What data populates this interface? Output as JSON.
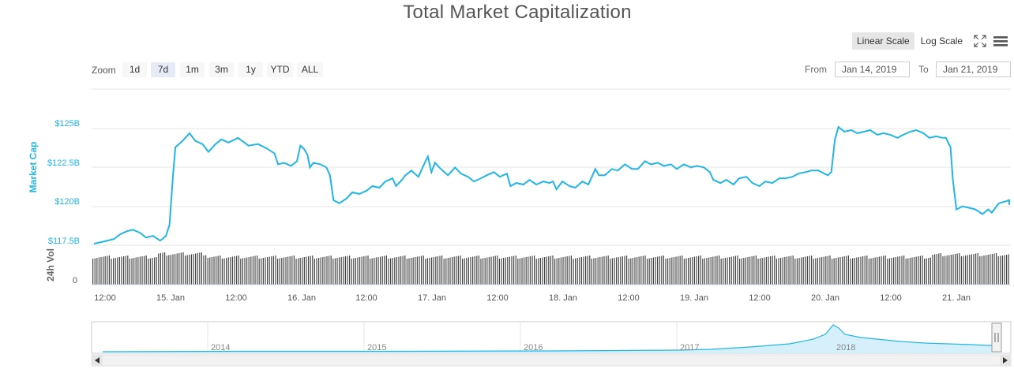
{
  "title": "Total Market Capitalization",
  "scale_buttons": {
    "linear": "Linear Scale",
    "log": "Log Scale"
  },
  "zoom": {
    "label": "Zoom",
    "buttons": [
      "1d",
      "7d",
      "1m",
      "3m",
      "1y",
      "YTD",
      "ALL"
    ],
    "active": "7d"
  },
  "range": {
    "from_label": "From",
    "from_value": "Jan 14, 2019",
    "to_label": "To",
    "to_value": "Jan 21, 2019"
  },
  "icons": [
    "fullscreen-icon",
    "menu-icon"
  ],
  "colors": {
    "line": "#22b5e6",
    "volume": "#444444",
    "grid": "#e6e6e6"
  },
  "chart_data": {
    "type": "line",
    "title": "Total Market Capitalization",
    "ylabel": "Market Cap",
    "volume_label": "24h Vol",
    "ylim": [
      117.5,
      125.5
    ],
    "y_ticks": [
      "$117.5B",
      "$120B",
      "$122.5B",
      "$125B"
    ],
    "volume_ticks": [
      "0"
    ],
    "x_ticks": [
      "12:00",
      "15. Jan",
      "12:00",
      "16. Jan",
      "12:00",
      "17. Jan",
      "12:00",
      "18. Jan",
      "12:00",
      "19. Jan",
      "12:00",
      "20. Jan",
      "12:00",
      "21. Jan"
    ],
    "series": [
      {
        "values": [
          [
            0.0,
            117.6
          ],
          [
            0.06,
            117.7
          ],
          [
            0.17,
            117.9
          ],
          [
            0.22,
            118.2
          ],
          [
            0.28,
            118.4
          ],
          [
            0.33,
            118.5
          ],
          [
            0.39,
            118.3
          ],
          [
            0.44,
            118.0
          ],
          [
            0.5,
            118.1
          ],
          [
            0.56,
            117.8
          ],
          [
            0.58,
            117.9
          ],
          [
            0.61,
            118.1
          ],
          [
            0.64,
            118.8
          ],
          [
            0.67,
            122.0
          ],
          [
            0.69,
            123.8
          ],
          [
            0.75,
            124.2
          ],
          [
            0.81,
            124.7
          ],
          [
            0.86,
            124.2
          ],
          [
            0.92,
            124.0
          ],
          [
            0.97,
            123.5
          ],
          [
            1.03,
            124.0
          ],
          [
            1.08,
            124.3
          ],
          [
            1.14,
            124.1
          ],
          [
            1.22,
            124.4
          ],
          [
            1.31,
            123.9
          ],
          [
            1.39,
            124.0
          ],
          [
            1.47,
            123.7
          ],
          [
            1.53,
            123.4
          ],
          [
            1.56,
            122.7
          ],
          [
            1.61,
            122.8
          ],
          [
            1.67,
            122.6
          ],
          [
            1.72,
            122.9
          ],
          [
            1.75,
            123.9
          ],
          [
            1.78,
            123.7
          ],
          [
            1.81,
            123.3
          ],
          [
            1.83,
            122.5
          ],
          [
            1.86,
            122.8
          ],
          [
            1.92,
            122.7
          ],
          [
            1.97,
            122.5
          ],
          [
            2.0,
            122.0
          ],
          [
            2.03,
            120.4
          ],
          [
            2.08,
            120.2
          ],
          [
            2.14,
            120.5
          ],
          [
            2.19,
            120.9
          ],
          [
            2.25,
            120.8
          ],
          [
            2.31,
            121.0
          ],
          [
            2.36,
            121.3
          ],
          [
            2.42,
            121.2
          ],
          [
            2.47,
            121.6
          ],
          [
            2.53,
            121.8
          ],
          [
            2.56,
            121.3
          ],
          [
            2.61,
            121.7
          ],
          [
            2.64,
            122.0
          ],
          [
            2.69,
            122.3
          ],
          [
            2.75,
            121.9
          ],
          [
            2.81,
            122.9
          ],
          [
            2.83,
            123.2
          ],
          [
            2.86,
            122.2
          ],
          [
            2.89,
            122.8
          ],
          [
            2.94,
            122.4
          ],
          [
            3.0,
            122.0
          ],
          [
            3.06,
            122.5
          ],
          [
            3.11,
            122.1
          ],
          [
            3.17,
            121.9
          ],
          [
            3.22,
            121.6
          ],
          [
            3.28,
            121.8
          ],
          [
            3.33,
            122.0
          ],
          [
            3.39,
            122.2
          ],
          [
            3.44,
            121.9
          ],
          [
            3.5,
            122.1
          ],
          [
            3.53,
            121.3
          ],
          [
            3.58,
            121.5
          ],
          [
            3.64,
            121.4
          ],
          [
            3.69,
            121.7
          ],
          [
            3.75,
            121.4
          ],
          [
            3.81,
            121.6
          ],
          [
            3.86,
            121.5
          ],
          [
            3.89,
            121.6
          ],
          [
            3.92,
            121.1
          ],
          [
            3.97,
            121.6
          ],
          [
            4.03,
            121.3
          ],
          [
            4.08,
            121.2
          ],
          [
            4.14,
            121.6
          ],
          [
            4.19,
            121.4
          ],
          [
            4.22,
            121.9
          ],
          [
            4.25,
            122.4
          ],
          [
            4.28,
            122.0
          ],
          [
            4.33,
            122.0
          ],
          [
            4.39,
            122.4
          ],
          [
            4.44,
            122.3
          ],
          [
            4.5,
            122.7
          ],
          [
            4.56,
            122.4
          ],
          [
            4.61,
            122.4
          ],
          [
            4.67,
            122.9
          ],
          [
            4.72,
            122.7
          ],
          [
            4.78,
            122.8
          ],
          [
            4.83,
            122.6
          ],
          [
            4.89,
            122.7
          ],
          [
            4.94,
            122.4
          ],
          [
            5.0,
            122.7
          ],
          [
            5.06,
            122.5
          ],
          [
            5.11,
            122.6
          ],
          [
            5.17,
            122.5
          ],
          [
            5.22,
            122.2
          ],
          [
            5.25,
            121.7
          ],
          [
            5.31,
            121.5
          ],
          [
            5.36,
            121.7
          ],
          [
            5.42,
            121.4
          ],
          [
            5.47,
            121.8
          ],
          [
            5.53,
            121.9
          ],
          [
            5.58,
            121.5
          ],
          [
            5.64,
            121.3
          ],
          [
            5.69,
            121.6
          ],
          [
            5.75,
            121.5
          ],
          [
            5.81,
            121.8
          ],
          [
            5.86,
            121.8
          ],
          [
            5.92,
            121.9
          ],
          [
            5.97,
            122.1
          ],
          [
            6.03,
            122.2
          ],
          [
            6.08,
            122.3
          ],
          [
            6.14,
            122.3
          ],
          [
            6.19,
            122.1
          ],
          [
            6.22,
            122.0
          ],
          [
            6.25,
            122.2
          ],
          [
            6.28,
            124.3
          ],
          [
            6.31,
            125.1
          ],
          [
            6.36,
            124.8
          ],
          [
            6.42,
            124.9
          ],
          [
            6.47,
            124.7
          ],
          [
            6.53,
            124.8
          ],
          [
            6.58,
            124.9
          ],
          [
            6.64,
            124.6
          ],
          [
            6.69,
            124.7
          ],
          [
            6.75,
            124.6
          ],
          [
            6.81,
            124.4
          ],
          [
            6.86,
            124.6
          ],
          [
            6.92,
            124.8
          ],
          [
            6.97,
            124.9
          ],
          [
            7.03,
            124.7
          ],
          [
            7.08,
            124.4
          ],
          [
            7.14,
            124.5
          ],
          [
            7.19,
            124.4
          ],
          [
            7.22,
            124.4
          ],
          [
            7.26,
            123.8
          ],
          [
            7.28,
            121.7
          ],
          [
            7.31,
            119.8
          ],
          [
            7.36,
            120.0
          ],
          [
            7.42,
            119.9
          ],
          [
            7.47,
            119.8
          ],
          [
            7.53,
            119.5
          ],
          [
            7.58,
            119.8
          ],
          [
            7.61,
            119.6
          ],
          [
            7.64,
            119.9
          ],
          [
            7.67,
            120.2
          ],
          [
            7.72,
            120.3
          ],
          [
            7.78,
            120.4
          ],
          [
            7.83,
            120.2
          ],
          [
            7.86,
            120.1
          ]
        ]
      }
    ],
    "x_unit": "days since 14. Jan 00:00",
    "navigator": {
      "labels": [
        "2014",
        "2015",
        "2016",
        "2017",
        "2018"
      ]
    }
  }
}
